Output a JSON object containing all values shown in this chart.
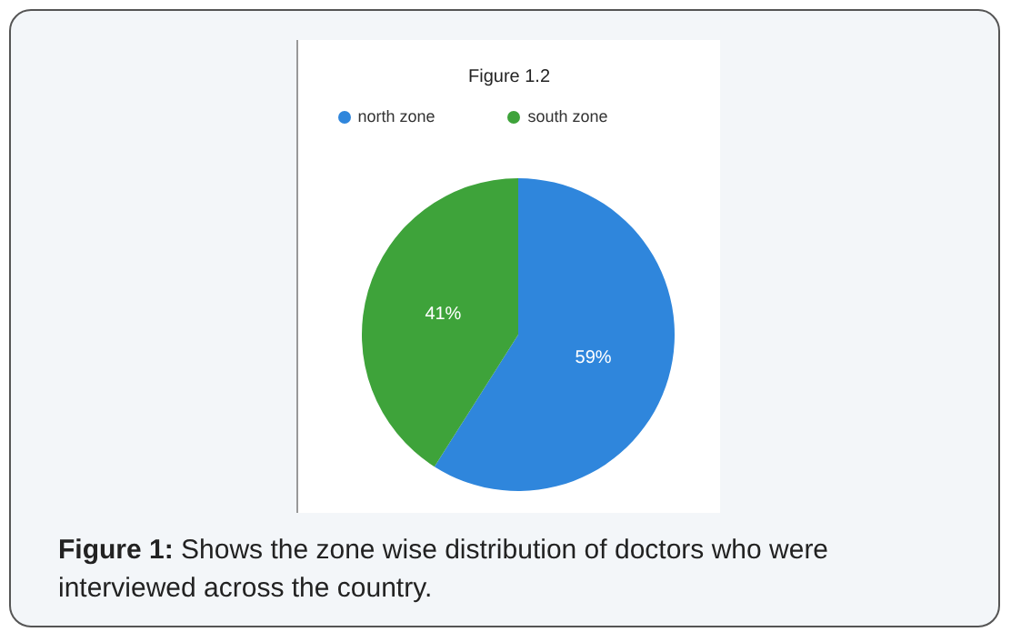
{
  "chart_data": {
    "type": "pie",
    "title": "Figure 1.2",
    "categories": [
      "north zone",
      "south zone"
    ],
    "values": [
      59,
      41
    ],
    "colors": [
      "#2f86dc",
      "#3ea33a"
    ],
    "value_labels": [
      "59%",
      "41%"
    ],
    "legend": "top",
    "annotations": [
      "Figure 1: Shows the zone wise distribution of doctors who were interviewed across the country."
    ]
  }
}
